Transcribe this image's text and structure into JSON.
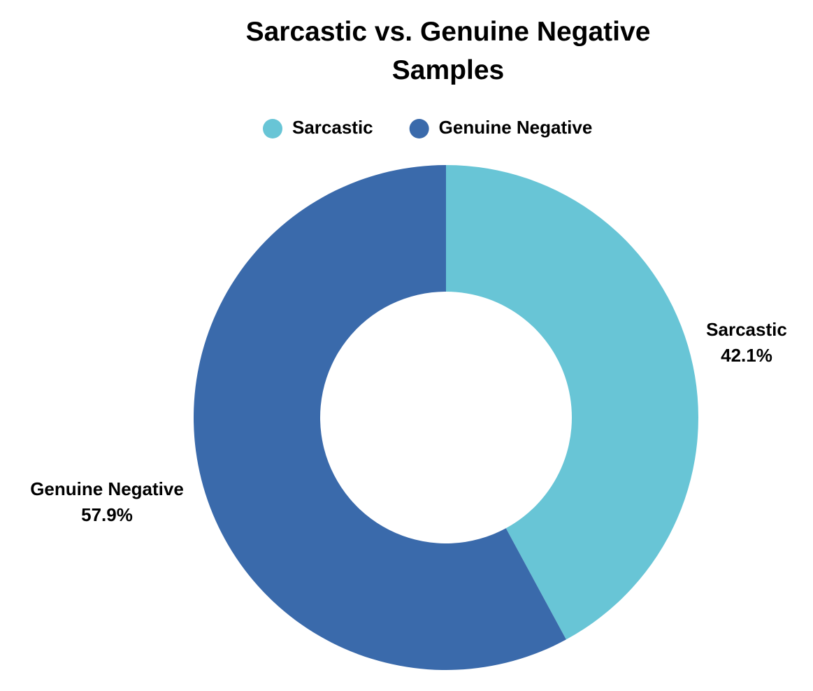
{
  "chart_data": {
    "type": "donut",
    "title": "Sarcastic vs. Genuine Negative Samples",
    "categories": [
      "Sarcastic",
      "Genuine Negative"
    ],
    "values": [
      42.1,
      57.9
    ],
    "value_labels": [
      "42.1%",
      "57.9%"
    ],
    "colors": [
      "#68c5d6",
      "#3a6aab"
    ],
    "legend": "top"
  }
}
